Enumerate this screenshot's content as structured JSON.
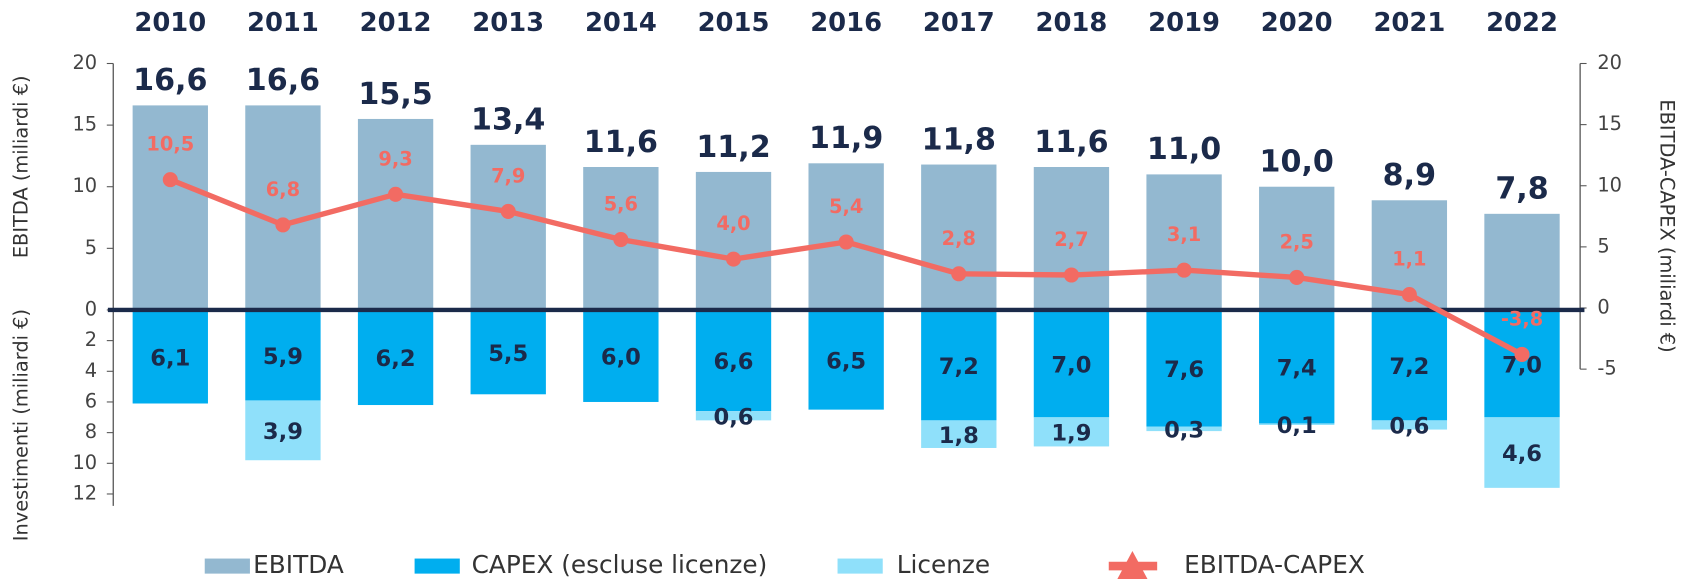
{
  "chart_data": {
    "type": "bar",
    "categories": [
      "2010",
      "2011",
      "2012",
      "2013",
      "2014",
      "2015",
      "2016",
      "2017",
      "2018",
      "2019",
      "2020",
      "2021",
      "2022"
    ],
    "y_label": "EBITDA (miliardi €)",
    "y3_label": "Investimenti (miliardi €)",
    "y2_label": "EBITDA-CAPEX (miliardi €)",
    "ylim": [
      0,
      20
    ],
    "yticks": [
      0,
      5,
      10,
      15,
      20
    ],
    "y3lim": [
      0,
      12
    ],
    "y3ticks": [
      2,
      4,
      6,
      8,
      10,
      12
    ],
    "y2lim": [
      -5,
      20
    ],
    "y2ticks": [
      -5,
      0,
      5,
      10,
      15,
      20
    ],
    "series": [
      {
        "name": "EBITDA",
        "color": "#93b8d0",
        "axis": "y",
        "values": [
          16.6,
          16.6,
          15.5,
          13.4,
          11.6,
          11.2,
          11.9,
          11.8,
          11.6,
          11.0,
          10.0,
          8.9,
          7.8
        ],
        "value_labels": [
          "16,6",
          "16,6",
          "15,5",
          "13,4",
          "11,6",
          "11,2",
          "11,9",
          "11,8",
          "11,6",
          "11,0",
          "10,0",
          "8,9",
          "7,8"
        ]
      },
      {
        "name": "CAPEX (escluse licenze)",
        "color": "#00aeef",
        "axis": "y3",
        "values": [
          6.1,
          5.9,
          6.2,
          5.5,
          6.0,
          6.6,
          6.5,
          7.2,
          7.0,
          7.6,
          7.4,
          7.2,
          7.0
        ],
        "value_labels": [
          "6,1",
          "5,9",
          "6,2",
          "5,5",
          "6,0",
          "6,6",
          "6,5",
          "7,2",
          "7,0",
          "7,6",
          "7,4",
          "7,2",
          "7,0"
        ]
      },
      {
        "name": "Licenze",
        "color": "#8fe0fa",
        "axis": "y3",
        "values": [
          null,
          3.9,
          null,
          null,
          null,
          0.6,
          null,
          1.8,
          1.9,
          0.3,
          0.1,
          0.6,
          4.6
        ],
        "value_labels": [
          null,
          "3,9",
          null,
          null,
          null,
          "0,6",
          null,
          "1,8",
          "1,9",
          "0,3",
          "0,1",
          "0,6",
          "4,6"
        ]
      },
      {
        "name": "EBITDA-CAPEX",
        "color": "#f26b63",
        "axis": "y2",
        "type": "line",
        "values": [
          10.5,
          6.8,
          9.3,
          7.9,
          5.6,
          4.0,
          5.4,
          2.8,
          2.7,
          3.1,
          2.5,
          1.1,
          -3.8
        ],
        "value_labels": [
          "10,5",
          "6,8",
          "9,3",
          "7,9",
          "5,6",
          "4,0",
          "5,4",
          "2,8",
          "2,7",
          "3,1",
          "2,5",
          "1,1",
          "-3,8"
        ]
      }
    ]
  }
}
